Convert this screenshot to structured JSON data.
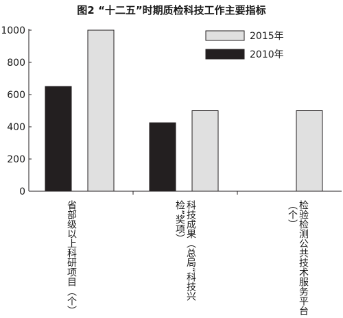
{
  "chart_data": {
    "type": "bar",
    "title": "图2 “十二五”时期质检科技工作主要指标",
    "categories": [
      "省部级以上科研项目（个）",
      "科技成果（总局“科技兴检”奖项）",
      "检验检测公共技术服务平台（个）"
    ],
    "series": [
      {
        "name": "2010年",
        "color": "#231f20",
        "values": [
          650,
          425,
          null
        ]
      },
      {
        "name": "2015年",
        "color": "#e0e0e0",
        "values": [
          1000,
          500,
          500
        ]
      }
    ],
    "ylim": [
      0,
      1000
    ],
    "yticks": [
      "0",
      "200",
      "400",
      "600",
      "800",
      "1000"
    ],
    "xlabel": "",
    "ylabel": "",
    "grid": false,
    "legend": {
      "position": "top-right",
      "order": [
        "2015年",
        "2010年"
      ]
    }
  }
}
